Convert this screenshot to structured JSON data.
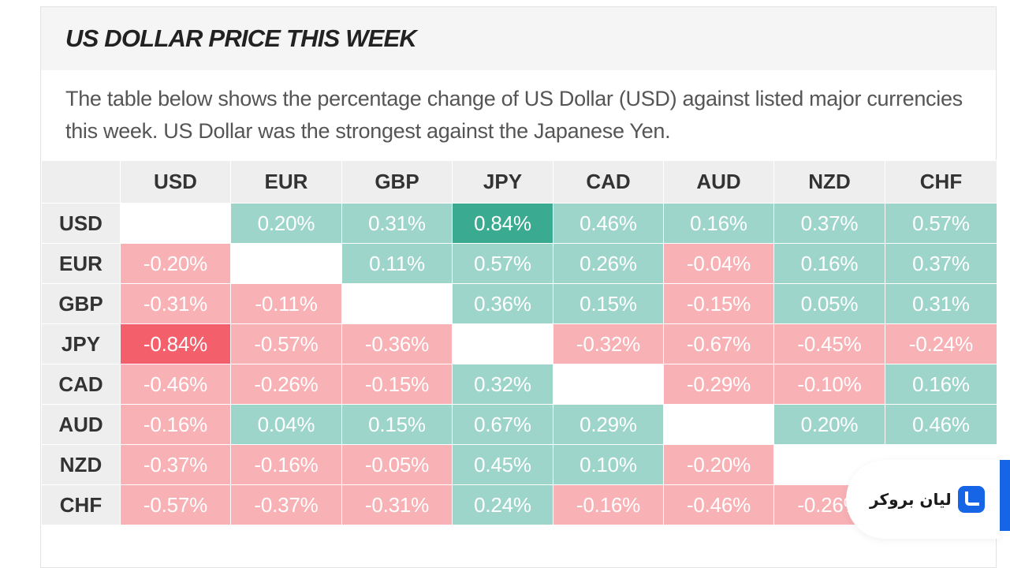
{
  "header": {
    "title": "US DOLLAR PRICE THIS WEEK"
  },
  "description": "The table below shows the percentage change of US Dollar (USD) against listed major currencies this week. US Dollar was the strongest against the Japanese Yen.",
  "table": {
    "columns": [
      "USD",
      "EUR",
      "GBP",
      "JPY",
      "CAD",
      "AUD",
      "NZD",
      "CHF"
    ],
    "rows": [
      {
        "label": "USD",
        "cells": [
          "",
          "0.20%",
          "0.31%",
          "0.84%",
          "0.46%",
          "0.16%",
          "0.37%",
          "0.57%"
        ]
      },
      {
        "label": "EUR",
        "cells": [
          "-0.20%",
          "",
          "0.11%",
          "0.57%",
          "0.26%",
          "-0.04%",
          "0.16%",
          "0.37%"
        ]
      },
      {
        "label": "GBP",
        "cells": [
          "-0.31%",
          "-0.11%",
          "",
          "0.36%",
          "0.15%",
          "-0.15%",
          "0.05%",
          "0.31%"
        ]
      },
      {
        "label": "JPY",
        "cells": [
          "-0.84%",
          "-0.57%",
          "-0.36%",
          "",
          "-0.32%",
          "-0.67%",
          "-0.45%",
          "-0.24%"
        ]
      },
      {
        "label": "CAD",
        "cells": [
          "-0.46%",
          "-0.26%",
          "-0.15%",
          "0.32%",
          "",
          "-0.29%",
          "-0.10%",
          "0.16%"
        ]
      },
      {
        "label": "AUD",
        "cells": [
          "-0.16%",
          "0.04%",
          "0.15%",
          "0.67%",
          "0.29%",
          "",
          "0.20%",
          "0.46%"
        ]
      },
      {
        "label": "NZD",
        "cells": [
          "-0.37%",
          "-0.16%",
          "-0.05%",
          "0.45%",
          "0.10%",
          "-0.20%",
          "",
          ""
        ]
      },
      {
        "label": "CHF",
        "cells": [
          "-0.57%",
          "-0.37%",
          "-0.31%",
          "0.24%",
          "-0.16%",
          "-0.46%",
          "-0.26%",
          ""
        ]
      }
    ]
  },
  "colors": {
    "positive": "#9ed5cb",
    "positive_strong": "#3aaa90",
    "negative": "#f8b1b5",
    "negative_strong": "#f3606b"
  },
  "badge": {
    "text": "لیان بروکر",
    "icon": "lian-broker-logo-icon"
  }
}
